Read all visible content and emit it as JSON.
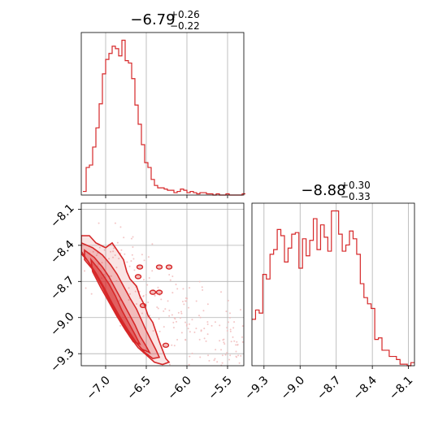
{
  "chart_data": [
    {
      "type": "histogram",
      "panel": "top-left",
      "title_main": "−6.79",
      "title_sup": "+0.26",
      "title_sub": "−0.22",
      "xlim": [
        -7.3,
        -5.3
      ],
      "bins_left": [
        -7.28,
        -7.24,
        -7.2,
        -7.16,
        -7.12,
        -7.08,
        -7.04,
        -7.0,
        -6.96,
        -6.92,
        -6.88,
        -6.84,
        -6.8,
        -6.76,
        -6.72,
        -6.68,
        -6.64,
        -6.6,
        -6.56,
        -6.52,
        -6.48,
        -6.44,
        -6.4,
        -6.36,
        -6.32,
        -6.28,
        -6.24,
        -6.2,
        -6.16,
        -6.12,
        -6.08,
        -6.04,
        -6.0,
        -5.96,
        -5.92,
        -5.88,
        -5.84,
        -5.8,
        -5.76,
        -5.72,
        -5.68,
        -5.64,
        -5.6,
        -5.56,
        -5.52,
        -5.48,
        -5.44,
        -5.4,
        -5.36,
        -5.32
      ],
      "counts": [
        3,
        23,
        25,
        40,
        56,
        76,
        101,
        113,
        118,
        124,
        122,
        116,
        129,
        112,
        110,
        97,
        75,
        59,
        42,
        27,
        23,
        13,
        8,
        6,
        6,
        5,
        4,
        4,
        2,
        3,
        5,
        4,
        2,
        3,
        2,
        1,
        2,
        2,
        1,
        1,
        0,
        1,
        0,
        0,
        1,
        0,
        0,
        0,
        0,
        1
      ],
      "x_ticks": [
        -7.0,
        -6.5,
        -6.0,
        -5.5
      ],
      "tick_labels": [
        "−7.0",
        "−6.5",
        "−6.0",
        "−5.5"
      ]
    },
    {
      "type": "contour",
      "panel": "bottom-left",
      "xlim": [
        -7.3,
        -5.3
      ],
      "ylim": [
        -9.4,
        -8.05
      ],
      "x_ticks": [
        -7.0,
        -6.5,
        -6.0,
        -5.5
      ],
      "x_tick_labels": [
        "−7.0",
        "−6.5",
        "−6.0",
        "−5.5"
      ],
      "y_ticks": [
        -8.1,
        -8.4,
        -8.7,
        -9.0,
        -9.3
      ],
      "y_tick_labels": [
        "−8.1",
        "−8.4",
        "−8.7",
        "−9.0",
        "−9.3"
      ],
      "color": "#d62728",
      "levels": [
        {
          "fill": 0.12,
          "outline": [
            [
              -7.3,
              -8.32
            ],
            [
              -7.2,
              -8.32
            ],
            [
              -7.12,
              -8.38
            ],
            [
              -7.0,
              -8.42
            ],
            [
              -6.92,
              -8.38
            ],
            [
              -6.84,
              -8.46
            ],
            [
              -6.78,
              -8.52
            ],
            [
              -6.74,
              -8.62
            ],
            [
              -6.7,
              -8.68
            ],
            [
              -6.62,
              -8.74
            ],
            [
              -6.58,
              -8.82
            ],
            [
              -6.52,
              -8.9
            ],
            [
              -6.48,
              -8.98
            ],
            [
              -6.42,
              -9.04
            ],
            [
              -6.38,
              -9.12
            ],
            [
              -6.34,
              -9.2
            ],
            [
              -6.3,
              -9.27
            ],
            [
              -6.26,
              -9.34
            ],
            [
              -6.22,
              -9.37
            ],
            [
              -6.3,
              -9.39
            ],
            [
              -6.4,
              -9.37
            ],
            [
              -6.5,
              -9.31
            ],
            [
              -6.6,
              -9.25
            ],
            [
              -6.7,
              -9.16
            ],
            [
              -6.8,
              -9.05
            ],
            [
              -6.9,
              -8.93
            ],
            [
              -7.0,
              -8.8
            ],
            [
              -7.1,
              -8.66
            ],
            [
              -7.2,
              -8.55
            ],
            [
              -7.3,
              -8.45
            ]
          ]
        },
        {
          "fill": 0.22,
          "outline": [
            [
              -7.3,
              -8.38
            ],
            [
              -7.16,
              -8.42
            ],
            [
              -7.04,
              -8.48
            ],
            [
              -6.94,
              -8.56
            ],
            [
              -6.86,
              -8.64
            ],
            [
              -6.78,
              -8.74
            ],
            [
              -6.7,
              -8.84
            ],
            [
              -6.62,
              -8.93
            ],
            [
              -6.56,
              -9.02
            ],
            [
              -6.5,
              -9.11
            ],
            [
              -6.44,
              -9.19
            ],
            [
              -6.38,
              -9.27
            ],
            [
              -6.34,
              -9.33
            ],
            [
              -6.42,
              -9.34
            ],
            [
              -6.52,
              -9.29
            ],
            [
              -6.62,
              -9.21
            ],
            [
              -6.72,
              -9.11
            ],
            [
              -6.82,
              -9.0
            ],
            [
              -6.92,
              -8.88
            ],
            [
              -7.02,
              -8.75
            ],
            [
              -7.12,
              -8.63
            ],
            [
              -7.22,
              -8.53
            ],
            [
              -7.3,
              -8.47
            ]
          ]
        },
        {
          "fill": 0.32,
          "outline": [
            [
              -7.26,
              -8.44
            ],
            [
              -7.14,
              -8.5
            ],
            [
              -7.04,
              -8.58
            ],
            [
              -6.96,
              -8.66
            ],
            [
              -6.88,
              -8.76
            ],
            [
              -6.8,
              -8.86
            ],
            [
              -6.72,
              -8.96
            ],
            [
              -6.64,
              -9.06
            ],
            [
              -6.58,
              -9.15
            ],
            [
              -6.5,
              -9.24
            ],
            [
              -6.46,
              -9.29
            ],
            [
              -6.56,
              -9.26
            ],
            [
              -6.66,
              -9.18
            ],
            [
              -6.76,
              -9.08
            ],
            [
              -6.86,
              -8.96
            ],
            [
              -6.96,
              -8.84
            ],
            [
              -7.06,
              -8.72
            ],
            [
              -7.16,
              -8.6
            ],
            [
              -7.26,
              -8.52
            ]
          ]
        },
        {
          "fill": 0.45,
          "outline": [
            [
              -7.18,
              -8.52
            ],
            [
              -7.06,
              -8.62
            ],
            [
              -6.96,
              -8.72
            ],
            [
              -6.88,
              -8.82
            ],
            [
              -6.8,
              -8.94
            ],
            [
              -6.72,
              -9.04
            ],
            [
              -6.64,
              -9.14
            ],
            [
              -6.58,
              -9.22
            ],
            [
              -6.66,
              -9.2
            ],
            [
              -6.76,
              -9.1
            ],
            [
              -6.86,
              -8.99
            ],
            [
              -6.96,
              -8.87
            ],
            [
              -7.06,
              -8.75
            ],
            [
              -7.16,
              -8.62
            ]
          ]
        }
      ],
      "islands": [
        [
          -6.6,
          -8.66
        ],
        [
          -6.54,
          -8.9
        ],
        [
          -6.42,
          -8.79
        ],
        [
          -6.26,
          -9.23
        ],
        [
          -6.22,
          -8.58
        ],
        [
          -6.34,
          -8.58
        ],
        [
          -6.34,
          -8.79
        ],
        [
          -6.58,
          -8.58
        ]
      ]
    },
    {
      "type": "histogram",
      "panel": "bottom-right",
      "title_main": "−8.88",
      "title_sup": "+0.30",
      "title_sub": "−0.33",
      "xlim": [
        -9.4,
        -8.05
      ],
      "bins_left": [
        -9.4,
        -9.37,
        -9.34,
        -9.31,
        -9.28,
        -9.25,
        -9.22,
        -9.19,
        -9.16,
        -9.13,
        -9.1,
        -9.07,
        -9.04,
        -9.01,
        -8.98,
        -8.95,
        -8.92,
        -8.89,
        -8.86,
        -8.83,
        -8.8,
        -8.77,
        -8.74,
        -8.71,
        -8.68,
        -8.65,
        -8.62,
        -8.59,
        -8.56,
        -8.53,
        -8.5,
        -8.47,
        -8.44,
        -8.41,
        -8.38,
        -8.35,
        -8.32,
        -8.29,
        -8.26,
        -8.23,
        -8.2,
        -8.17,
        -8.14,
        -8.11,
        -8.08
      ],
      "counts": [
        30,
        36,
        34,
        59,
        56,
        72,
        75,
        88,
        84,
        67,
        76,
        85,
        86,
        63,
        82,
        71,
        81,
        95,
        75,
        91,
        83,
        74,
        100,
        100,
        85,
        74,
        78,
        87,
        82,
        72,
        53,
        44,
        40,
        37,
        17,
        18,
        10,
        10,
        6,
        6,
        4,
        1,
        1,
        0,
        2
      ],
      "x_ticks": [
        -9.3,
        -9.0,
        -8.7,
        -8.4,
        -8.1
      ],
      "tick_labels": [
        "−9.3",
        "−9.0",
        "−8.7",
        "−8.4",
        "−8.1"
      ]
    }
  ]
}
